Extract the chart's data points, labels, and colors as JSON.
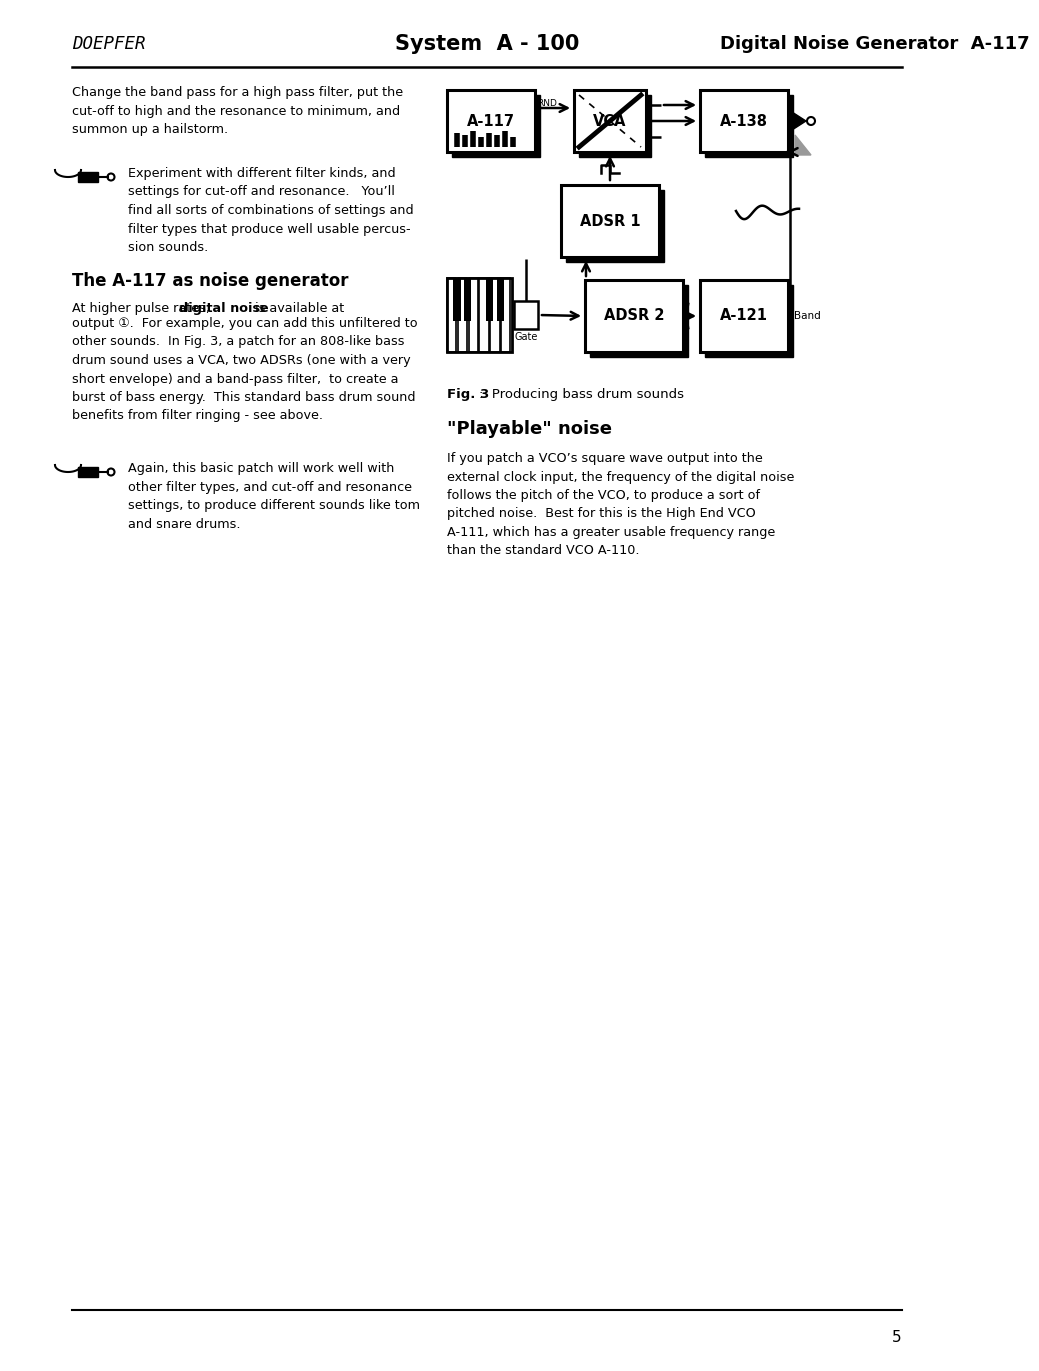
{
  "page_number": "5",
  "header_left": "DOEPFER",
  "header_center": "System  A - 100",
  "header_right": "Digital Noise Generator  A-117",
  "p1": "Change the band pass for a high pass filter, put the\ncut-off to high and the resonance to minimum, and\nsummon up a hailstorm.",
  "tip1": "Experiment with different filter kinds, and\nsettings for cut-off and resonance.   You’ll\nfind all sorts of combinations of settings and\nfilter types that produce well usable percus-\nsion sounds.",
  "heading1": "The A-117 as noise generator",
  "p2a": "At higher pulse rates, ",
  "p2b": "digital noise",
  "p2c": " is available at",
  "p2d": "output ①.  For example, you can add this unfiltered to\nother sounds.  In Fig. 3, a patch for an 808-like bass\ndrum sound uses a VCA, two ADSRs (one with a very\nshort envelope) and a band-pass filter,  to create a\nburst of bass energy.  This standard bass drum sound\nbenefits from filter ringing - see above.",
  "tip2": "Again, this basic patch will work well with\nother filter types, and cut-off and resonance\nsettings, to produce different sounds like tom\nand snare drums.",
  "fig_caption_bold": "Fig. 3",
  "fig_caption_rest": ":  Producing bass drum sounds",
  "heading2": "\"Playable\" noise",
  "p3": "If you patch a VCO’s square wave output into the\nexternal clock input, the frequency of the digital noise\nfollows the pitch of the VCO, to produce a sort of\npitched noise.  Best for this is the High End VCO\nA-111, which has a greater usable frequency range\nthan the standard VCO A-110.",
  "background_color": "#ffffff"
}
